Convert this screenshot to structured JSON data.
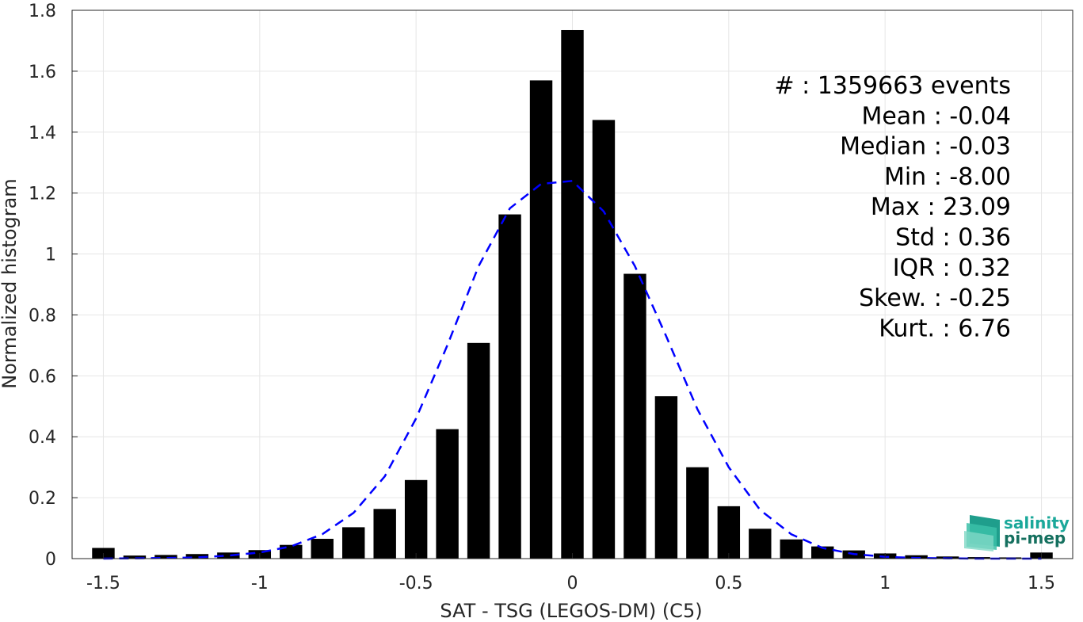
{
  "chart_data": {
    "type": "bar",
    "xlabel": "SAT - TSG (LEGOS-DM) (C5)",
    "ylabel": "Normalized histogram",
    "xlim": [
      -1.6,
      1.6
    ],
    "ylim": [
      0,
      1.8
    ],
    "x_ticks": [
      "-1.5",
      "-1",
      "-0.5",
      "0",
      "0.5",
      "1",
      "1.5"
    ],
    "y_ticks": [
      "0",
      "0.2",
      "0.4",
      "0.6",
      "0.8",
      "1",
      "1.2",
      "1.4",
      "1.6",
      "1.8"
    ],
    "grid": true,
    "bin_centers": [
      -1.5,
      -1.4,
      -1.3,
      -1.2,
      -1.1,
      -1.0,
      -0.9,
      -0.8,
      -0.7,
      -0.6,
      -0.5,
      -0.4,
      -0.3,
      -0.2,
      -0.1,
      0.0,
      0.1,
      0.2,
      0.3,
      0.4,
      0.5,
      0.6,
      0.7,
      0.8,
      0.9,
      1.0,
      1.1,
      1.2,
      1.3,
      1.4,
      1.5
    ],
    "bar_values": [
      0.035,
      0.01,
      0.012,
      0.015,
      0.02,
      0.028,
      0.045,
      0.065,
      0.103,
      0.163,
      0.258,
      0.425,
      0.708,
      1.13,
      1.57,
      1.735,
      1.44,
      0.935,
      0.533,
      0.3,
      0.172,
      0.098,
      0.063,
      0.04,
      0.027,
      0.017,
      0.011,
      0.007,
      0.005,
      0.004,
      0.02
    ],
    "fit_curve": {
      "style": "dashed",
      "color": "#0000ff",
      "x": [
        -1.5,
        -1.4,
        -1.3,
        -1.2,
        -1.1,
        -1.0,
        -0.9,
        -0.8,
        -0.7,
        -0.6,
        -0.5,
        -0.4,
        -0.3,
        -0.2,
        -0.1,
        0.0,
        0.1,
        0.2,
        0.3,
        0.4,
        0.5,
        0.6,
        0.7,
        0.8,
        0.9,
        1.0,
        1.1,
        1.2,
        1.3,
        1.4,
        1.5
      ],
      "y": [
        0.0,
        0.001,
        0.002,
        0.004,
        0.01,
        0.02,
        0.04,
        0.08,
        0.15,
        0.27,
        0.46,
        0.7,
        0.96,
        1.15,
        1.23,
        1.24,
        1.14,
        0.96,
        0.73,
        0.49,
        0.3,
        0.16,
        0.08,
        0.035,
        0.015,
        0.006,
        0.002,
        0.001,
        0.0,
        0.0,
        0.0
      ]
    },
    "bar_color": "#000000"
  },
  "stats": {
    "lines": [
      "#  : 1359663 events",
      "Mean : -0.04",
      "Median : -0.03",
      "Min : -8.00",
      "Max : 23.09",
      "Std : 0.36",
      "IQR : 0.32",
      "Skew. : -0.25",
      "Kurt. : 6.76"
    ]
  },
  "logo": {
    "line1": "salinity",
    "line2": "pi-mep",
    "color_top": "#1aa89a",
    "color_bottom": "#15705f"
  }
}
